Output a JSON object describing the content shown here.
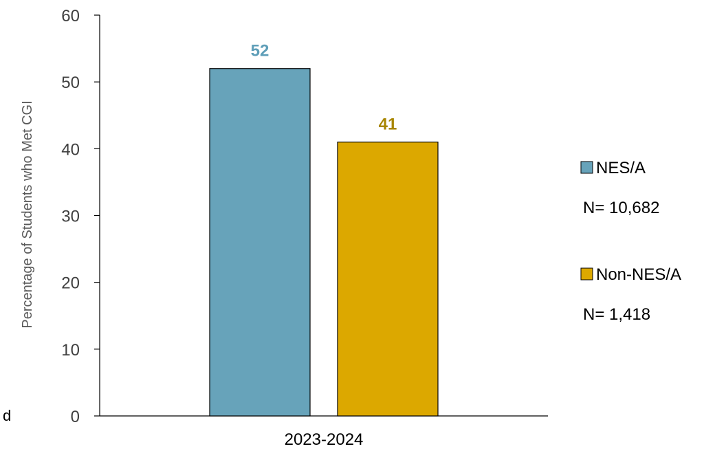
{
  "chart_data": {
    "type": "bar",
    "title": "",
    "xlabel": "",
    "ylabel": "Percentage of Students who Met CGI",
    "ylim": [
      0,
      60
    ],
    "yticks": [
      0,
      10,
      20,
      30,
      40,
      50,
      60
    ],
    "categories": [
      "2023-2024"
    ],
    "series": [
      {
        "name": "NES/A",
        "n_label": "N= 10,682",
        "values": [
          52
        ],
        "color": "#67A3BA",
        "label_color": "#5E9EB8"
      },
      {
        "name": "Non-NES/A",
        "n_label": "N= 1,418",
        "values": [
          41
        ],
        "color": "#DCA800",
        "label_color": "#A88600"
      }
    ],
    "legend_position": "right",
    "grid": false,
    "stray_text": "d"
  }
}
